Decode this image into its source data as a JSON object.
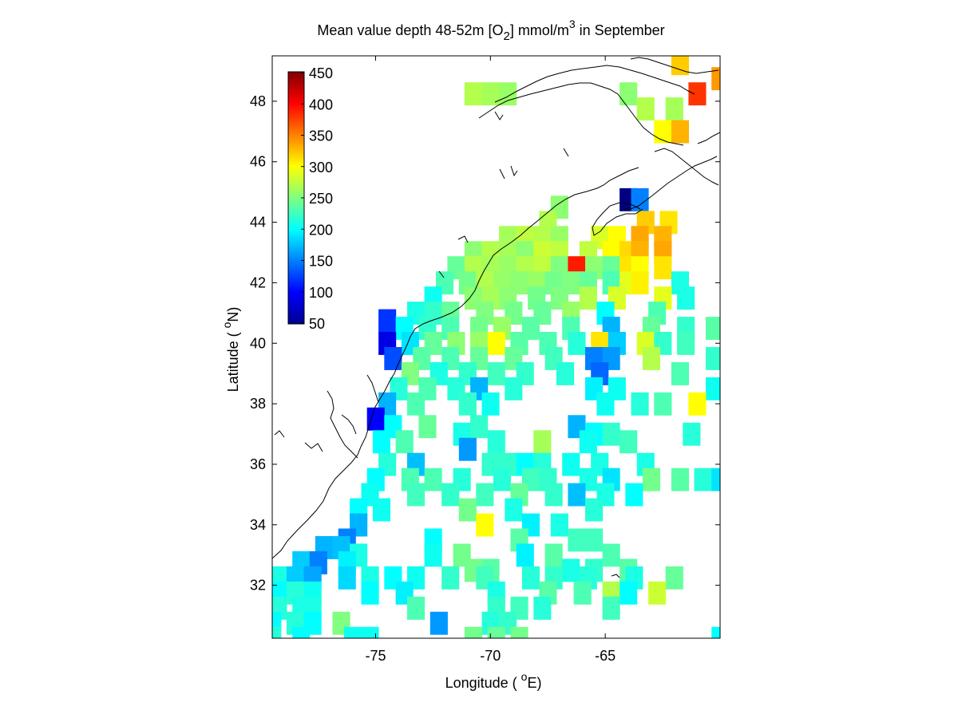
{
  "title": {
    "main": "Mean value depth 48-52m [O",
    "sub": "2",
    "unit": "] mmol/m",
    "sup": "3",
    "tail": " in September"
  },
  "xlabel": {
    "text": "Longitude ( ",
    "deg": "o",
    "unit": "E)"
  },
  "ylabel": {
    "text": "Latitude ( ",
    "deg": "o",
    "unit": "N)"
  },
  "colormap": "jet",
  "chart_data": {
    "type": "heatmap",
    "variable": "O2",
    "xlim": [
      -79.5,
      -60.0
    ],
    "ylim": [
      30.25,
      49.5
    ],
    "cell_size_deg": 0.75,
    "xticks": [
      -75,
      -70,
      -65
    ],
    "yticks": [
      32,
      34,
      36,
      38,
      40,
      42,
      44,
      46,
      48
    ],
    "colorbar": {
      "min": 50,
      "max": 450,
      "ticks": [
        50,
        100,
        150,
        200,
        250,
        300,
        350,
        400,
        450
      ]
    },
    "cells": [
      [
        -61.75,
        49.25,
        320
      ],
      [
        -60.0,
        48.75,
        340
      ],
      [
        -61.0,
        48.25,
        380
      ],
      [
        -70.75,
        48.25,
        270
      ],
      [
        -70.0,
        48.25,
        265
      ],
      [
        -69.25,
        48.25,
        260
      ],
      [
        -64.0,
        48.25,
        255
      ],
      [
        -63.25,
        47.75,
        270
      ],
      [
        -62.0,
        47.75,
        265
      ],
      [
        -62.5,
        47.0,
        300
      ],
      [
        -61.75,
        47.0,
        330
      ],
      [
        -64.0,
        44.75,
        50
      ],
      [
        -63.5,
        44.75,
        150
      ],
      [
        -67.0,
        44.5,
        255
      ],
      [
        -67.5,
        44.0,
        270
      ],
      [
        -63.25,
        44.0,
        320
      ],
      [
        -62.25,
        44.0,
        310
      ],
      [
        -69.25,
        43.5,
        265
      ],
      [
        -68.5,
        43.5,
        275
      ],
      [
        -67.75,
        43.5,
        270
      ],
      [
        -67.0,
        43.5,
        260
      ],
      [
        -65.25,
        43.5,
        285
      ],
      [
        -64.5,
        43.5,
        300
      ],
      [
        -63.5,
        43.5,
        335
      ],
      [
        -62.5,
        43.5,
        330
      ],
      [
        -70.75,
        43.0,
        255
      ],
      [
        -70.0,
        43.0,
        270
      ],
      [
        -69.25,
        43.0,
        265
      ],
      [
        -68.5,
        43.0,
        255
      ],
      [
        -67.75,
        43.0,
        280
      ],
      [
        -67.0,
        43.0,
        275
      ],
      [
        -65.75,
        43.0,
        275
      ],
      [
        -64.75,
        43.0,
        300
      ],
      [
        -64.0,
        43.0,
        315
      ],
      [
        -63.5,
        43.0,
        330
      ],
      [
        -62.5,
        43.0,
        335
      ],
      [
        -71.5,
        42.5,
        240
      ],
      [
        -70.75,
        42.5,
        270
      ],
      [
        -70.0,
        42.5,
        265
      ],
      [
        -69.25,
        42.5,
        260
      ],
      [
        -68.5,
        42.5,
        270
      ],
      [
        -67.75,
        42.5,
        275
      ],
      [
        -67.0,
        42.5,
        250
      ],
      [
        -66.25,
        42.5,
        390
      ],
      [
        -65.5,
        42.5,
        255
      ],
      [
        -64.75,
        42.5,
        240
      ],
      [
        -64.0,
        42.5,
        310
      ],
      [
        -63.5,
        42.5,
        300
      ],
      [
        -62.5,
        42.5,
        310
      ],
      [
        -72.0,
        42.0,
        230
      ],
      [
        -71.0,
        42.0,
        245
      ],
      [
        -70.25,
        42.0,
        270
      ],
      [
        -69.5,
        42.0,
        260
      ],
      [
        -68.75,
        42.0,
        255
      ],
      [
        -68.0,
        42.0,
        260
      ],
      [
        -67.25,
        42.0,
        245
      ],
      [
        -66.5,
        42.0,
        250
      ],
      [
        -65.75,
        42.0,
        240
      ],
      [
        -64.75,
        42.0,
        230
      ],
      [
        -64.0,
        42.0,
        290
      ],
      [
        -63.5,
        42.0,
        305
      ],
      [
        -61.75,
        42.0,
        210
      ],
      [
        -72.5,
        41.5,
        205
      ],
      [
        -70.75,
        41.5,
        255
      ],
      [
        -70.0,
        41.5,
        265
      ],
      [
        -69.25,
        41.5,
        255
      ],
      [
        -68.0,
        41.5,
        245
      ],
      [
        -67.0,
        41.5,
        250
      ],
      [
        -65.75,
        41.5,
        270
      ],
      [
        -64.5,
        41.5,
        285
      ],
      [
        -62.5,
        41.5,
        290
      ],
      [
        -61.5,
        41.5,
        210
      ],
      [
        -73.25,
        41.0,
        210
      ],
      [
        -72.5,
        41.0,
        220
      ],
      [
        -71.75,
        41.0,
        240
      ],
      [
        -70.25,
        41.0,
        250
      ],
      [
        -69.0,
        41.0,
        245
      ],
      [
        -67.75,
        41.0,
        240
      ],
      [
        -66.5,
        41.0,
        260
      ],
      [
        -65.0,
        41.0,
        200
      ],
      [
        -62.75,
        41.0,
        230
      ],
      [
        -74.5,
        40.75,
        120
      ],
      [
        -73.75,
        40.5,
        200
      ],
      [
        -72.75,
        40.5,
        220
      ],
      [
        -71.75,
        40.5,
        230
      ],
      [
        -70.5,
        40.5,
        245
      ],
      [
        -69.5,
        40.5,
        260
      ],
      [
        -68.25,
        40.5,
        235
      ],
      [
        -66.5,
        40.5,
        230
      ],
      [
        -64.75,
        40.5,
        170
      ],
      [
        -63.0,
        40.5,
        240
      ],
      [
        -61.5,
        40.5,
        220
      ],
      [
        -60.25,
        40.5,
        235
      ],
      [
        -74.5,
        40.0,
        90
      ],
      [
        -73.5,
        40.0,
        190
      ],
      [
        -72.5,
        40.0,
        240
      ],
      [
        -71.5,
        40.0,
        255
      ],
      [
        -70.5,
        40.0,
        260
      ],
      [
        -69.75,
        40.0,
        300
      ],
      [
        -68.75,
        40.0,
        235
      ],
      [
        -67.5,
        40.0,
        230
      ],
      [
        -66.25,
        40.0,
        215
      ],
      [
        -65.25,
        40.0,
        310
      ],
      [
        -64.5,
        40.0,
        180
      ],
      [
        -63.25,
        40.0,
        285
      ],
      [
        -62.5,
        40.0,
        220
      ],
      [
        -61.5,
        40.0,
        225
      ],
      [
        -74.25,
        39.5,
        130
      ],
      [
        -73.0,
        39.5,
        235
      ],
      [
        -71.75,
        39.5,
        230
      ],
      [
        -70.5,
        39.5,
        240
      ],
      [
        -69.0,
        39.5,
        240
      ],
      [
        -67.25,
        39.5,
        225
      ],
      [
        -65.5,
        39.5,
        150
      ],
      [
        -64.75,
        39.5,
        160
      ],
      [
        -63.0,
        39.5,
        270
      ],
      [
        -60.25,
        39.5,
        220
      ],
      [
        -73.5,
        39.0,
        250
      ],
      [
        -72.25,
        39.0,
        210
      ],
      [
        -71.0,
        39.0,
        220
      ],
      [
        -69.75,
        39.0,
        225
      ],
      [
        -68.5,
        39.0,
        220
      ],
      [
        -66.75,
        39.0,
        215
      ],
      [
        -65.25,
        39.0,
        140
      ],
      [
        -61.75,
        39.0,
        230
      ],
      [
        -74.0,
        38.5,
        215
      ],
      [
        -72.75,
        38.5,
        230
      ],
      [
        -71.5,
        38.5,
        215
      ],
      [
        -70.5,
        38.5,
        170
      ],
      [
        -69.0,
        38.5,
        215
      ],
      [
        -65.5,
        38.5,
        195
      ],
      [
        -64.5,
        38.5,
        205
      ],
      [
        -60.25,
        38.5,
        205
      ],
      [
        -74.5,
        38.0,
        170
      ],
      [
        -73.25,
        38.0,
        230
      ],
      [
        -71.0,
        38.0,
        220
      ],
      [
        -70.0,
        38.0,
        205
      ],
      [
        -65.0,
        38.0,
        205
      ],
      [
        -63.5,
        38.0,
        215
      ],
      [
        -62.5,
        38.0,
        230
      ],
      [
        -61.0,
        38.0,
        300
      ],
      [
        -75.0,
        37.5,
        100
      ],
      [
        -74.25,
        37.25,
        200
      ],
      [
        -72.75,
        37.25,
        240
      ],
      [
        -71.25,
        37.0,
        210
      ],
      [
        -70.5,
        37.25,
        220
      ],
      [
        -66.25,
        37.25,
        170
      ],
      [
        -65.5,
        37.0,
        200
      ],
      [
        -64.75,
        37.0,
        220
      ],
      [
        -61.25,
        37.0,
        215
      ],
      [
        -74.75,
        36.75,
        200
      ],
      [
        -73.75,
        36.75,
        230
      ],
      [
        -71.0,
        36.5,
        160
      ],
      [
        -69.75,
        36.75,
        215
      ],
      [
        -67.75,
        36.75,
        265
      ],
      [
        -65.75,
        36.75,
        205
      ],
      [
        -64.0,
        36.75,
        225
      ],
      [
        -74.5,
        36.0,
        215
      ],
      [
        -73.25,
        36.0,
        175
      ],
      [
        -70.0,
        36.0,
        220
      ],
      [
        -69.25,
        36.0,
        220
      ],
      [
        -68.5,
        36.0,
        200
      ],
      [
        -67.75,
        36.0,
        215
      ],
      [
        -66.5,
        36.0,
        205
      ],
      [
        -65.25,
        36.0,
        210
      ],
      [
        -63.25,
        36.0,
        210
      ],
      [
        -75.0,
        35.5,
        200
      ],
      [
        -73.5,
        35.5,
        230
      ],
      [
        -72.5,
        35.5,
        230
      ],
      [
        -71.25,
        35.5,
        215
      ],
      [
        -69.5,
        35.5,
        215
      ],
      [
        -68.25,
        35.5,
        225
      ],
      [
        -67.5,
        35.5,
        220
      ],
      [
        -65.75,
        35.5,
        210
      ],
      [
        -64.75,
        35.5,
        190
      ],
      [
        -63.0,
        35.5,
        245
      ],
      [
        -61.75,
        35.5,
        235
      ],
      [
        -60.75,
        35.5,
        215
      ],
      [
        -60.0,
        35.5,
        190
      ],
      [
        -75.25,
        35.0,
        205
      ],
      [
        -73.25,
        35.0,
        225
      ],
      [
        -71.75,
        35.0,
        220
      ],
      [
        -70.25,
        35.0,
        225
      ],
      [
        -68.75,
        35.0,
        240
      ],
      [
        -67.25,
        35.0,
        220
      ],
      [
        -66.25,
        35.0,
        175
      ],
      [
        -65.0,
        35.0,
        210
      ],
      [
        -63.75,
        35.0,
        200
      ],
      [
        -75.75,
        34.5,
        200
      ],
      [
        -74.75,
        34.5,
        205
      ],
      [
        -71.0,
        34.5,
        245
      ],
      [
        -69.0,
        34.5,
        210
      ],
      [
        -65.5,
        34.5,
        215
      ],
      [
        -75.75,
        34.0,
        170
      ],
      [
        -70.25,
        34.0,
        300
      ],
      [
        -68.25,
        34.0,
        195
      ],
      [
        -67.0,
        34.0,
        210
      ],
      [
        -76.25,
        33.5,
        150
      ],
      [
        -72.5,
        33.5,
        200
      ],
      [
        -68.75,
        33.5,
        235
      ],
      [
        -66.25,
        33.5,
        225
      ],
      [
        -65.5,
        33.5,
        225
      ],
      [
        -77.25,
        33.25,
        170
      ],
      [
        -76.5,
        33.25,
        175
      ],
      [
        -75.75,
        33.0,
        210
      ],
      [
        -72.5,
        33.0,
        205
      ],
      [
        -71.25,
        33.0,
        245
      ],
      [
        -68.5,
        33.0,
        195
      ],
      [
        -67.25,
        33.0,
        235
      ],
      [
        -64.75,
        33.0,
        230
      ],
      [
        -78.25,
        32.75,
        180
      ],
      [
        -77.5,
        32.75,
        150
      ],
      [
        -76.25,
        32.75,
        195
      ],
      [
        -70.75,
        32.5,
        245
      ],
      [
        -70.0,
        32.5,
        235
      ],
      [
        -66.5,
        32.5,
        210
      ],
      [
        -65.5,
        32.5,
        220
      ],
      [
        -64.0,
        32.5,
        235
      ],
      [
        -79.25,
        32.25,
        210
      ],
      [
        -78.5,
        32.25,
        180
      ],
      [
        -77.75,
        32.25,
        165
      ],
      [
        -76.25,
        32.25,
        185
      ],
      [
        -75.25,
        32.25,
        210
      ],
      [
        -74.25,
        32.25,
        200
      ],
      [
        -73.25,
        32.25,
        205
      ],
      [
        -71.75,
        32.25,
        220
      ],
      [
        -70.25,
        32.25,
        225
      ],
      [
        -68.25,
        32.25,
        215
      ],
      [
        -67.25,
        32.25,
        220
      ],
      [
        -65.75,
        32.25,
        215
      ],
      [
        -63.75,
        32.25,
        210
      ],
      [
        -62.0,
        32.25,
        240
      ],
      [
        -79.25,
        31.75,
        200
      ],
      [
        -78.5,
        31.75,
        215
      ],
      [
        -77.75,
        31.75,
        205
      ],
      [
        -75.25,
        31.75,
        200
      ],
      [
        -73.75,
        31.75,
        195
      ],
      [
        -69.75,
        31.75,
        210
      ],
      [
        -67.5,
        31.75,
        235
      ],
      [
        -66.0,
        31.75,
        230
      ],
      [
        -64.75,
        31.75,
        270
      ],
      [
        -64.0,
        31.75,
        200
      ],
      [
        -62.75,
        31.75,
        280
      ],
      [
        -79.25,
        31.25,
        215
      ],
      [
        -78.25,
        31.25,
        210
      ],
      [
        -77.75,
        31.25,
        210
      ],
      [
        -73.25,
        31.25,
        230
      ],
      [
        -69.75,
        31.25,
        220
      ],
      [
        -68.75,
        31.25,
        225
      ],
      [
        -67.75,
        31.25,
        215
      ],
      [
        -64.75,
        31.25,
        225
      ],
      [
        -79.5,
        30.75,
        200
      ],
      [
        -78.5,
        30.75,
        215
      ],
      [
        -77.75,
        30.75,
        200
      ],
      [
        -76.5,
        30.75,
        250
      ],
      [
        -72.25,
        30.75,
        160
      ],
      [
        -70.0,
        30.75,
        215
      ],
      [
        -69.25,
        30.75,
        220
      ],
      [
        -79.5,
        30.25,
        215
      ],
      [
        -78.25,
        30.25,
        200
      ],
      [
        -76.0,
        30.25,
        205
      ],
      [
        -75.25,
        30.25,
        205
      ],
      [
        -70.75,
        30.25,
        245
      ],
      [
        -69.75,
        30.25,
        240
      ],
      [
        -68.75,
        30.25,
        245
      ],
      [
        -60.0,
        30.25,
        200
      ]
    ]
  }
}
